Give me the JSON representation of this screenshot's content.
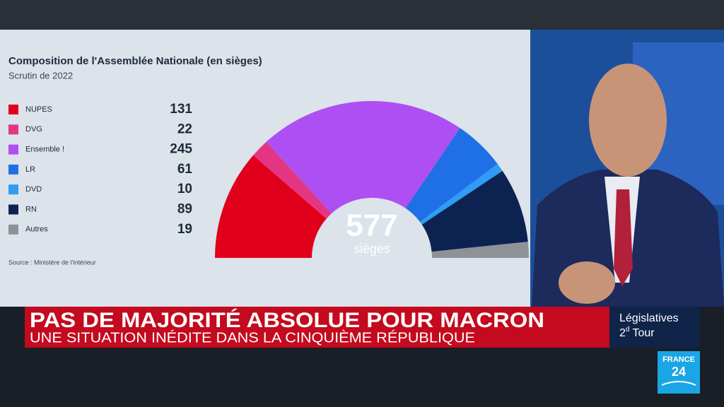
{
  "chart_data": {
    "type": "half-donut",
    "title": "Composition de l'Assemblée Nationale (en sièges)",
    "subtitle": "Scrutin de 2022",
    "categories": [
      "NUPES",
      "DVG",
      "Ensemble !",
      "LR",
      "DVD",
      "RN",
      "Autres"
    ],
    "values": [
      131,
      22,
      245,
      61,
      10,
      89,
      19
    ],
    "colors": [
      "#e1001c",
      "#e43583",
      "#ad4ff2",
      "#1f6fe6",
      "#2f9cf5",
      "#0c2352",
      "#8e9196"
    ],
    "total": 577,
    "total_label": "sièges",
    "source": "Source : Ministère de l'intérieur"
  },
  "banner": {
    "headline": "PAS DE MAJORITÉ ABSOLUE POUR MACRON",
    "subline": "UNE SITUATION INÉDITE DANS LA CINQUIÈME RÉPUBLIQUE",
    "section": "Législatives",
    "round_number": "2",
    "round_suffix": "d",
    "round_word": "Tour"
  },
  "logo": {
    "top": "FRANCE",
    "bottom": "24"
  }
}
